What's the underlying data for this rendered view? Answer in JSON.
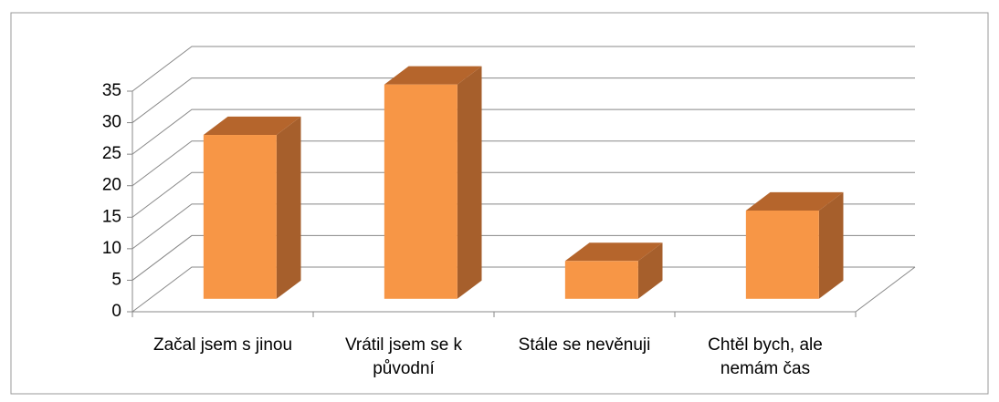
{
  "chart_data": {
    "type": "bar3d",
    "categories": [
      "Začal jsem s jinou",
      "Vrátil jsem se k původní",
      "Stále se nevěnuji",
      "Chtěl bych, ale nemám čas"
    ],
    "values": [
      26,
      34,
      6,
      14
    ],
    "color": "#f79646",
    "ylim": [
      0,
      35
    ],
    "yticks": [
      0,
      5,
      10,
      15,
      20,
      25,
      30,
      35
    ],
    "grid": true
  }
}
